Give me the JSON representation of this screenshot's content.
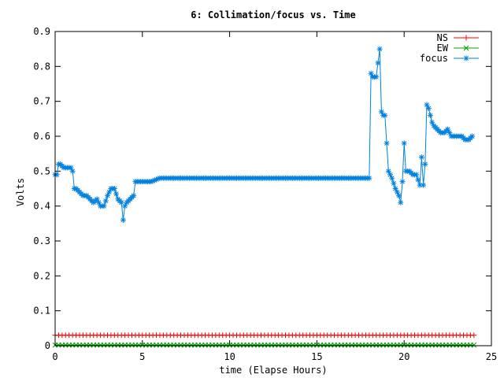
{
  "chart_data": {
    "type": "line",
    "title": "6: Collimation/focus vs. Time",
    "xlabel": "time (Elapse Hours)",
    "ylabel": "Volts",
    "xlim": [
      0,
      25
    ],
    "ylim": [
      0,
      0.9
    ],
    "xticks": [
      0,
      5,
      10,
      15,
      20,
      25
    ],
    "xtick_labels": [
      "0",
      "5",
      "10",
      "15",
      "20",
      "25"
    ],
    "yticks": [
      0,
      0.1,
      0.2,
      0.3,
      0.4,
      0.5,
      0.6,
      0.7,
      0.8,
      0.9
    ],
    "ytick_labels": [
      "0",
      "0.1",
      "0.2",
      "0.3",
      "0.4",
      "0.5",
      "0.6",
      "0.7",
      "0.8",
      "0.9"
    ],
    "grid": false,
    "legend_position": "top-right",
    "series": [
      {
        "name": "NS",
        "color": "#ff0000",
        "marker": "plus",
        "x_range": [
          0,
          24
        ],
        "x_step": 0.2,
        "constant_value": 0.03
      },
      {
        "name": "EW",
        "color": "#00a000",
        "marker": "cross",
        "x_range": [
          0,
          24
        ],
        "x_step": 0.2,
        "constant_value": 0.002
      },
      {
        "name": "focus",
        "color": "#0080e0",
        "marker": "star",
        "x": [
          0,
          0.1,
          0.2,
          0.3,
          0.5,
          0.7,
          0.9,
          1.0,
          1.1,
          1.2,
          1.4,
          1.6,
          1.8,
          2.0,
          2.2,
          2.4,
          2.6,
          2.8,
          3.0,
          3.2,
          3.4,
          3.6,
          3.8,
          3.9,
          4.0,
          4.1,
          4.3,
          4.5,
          4.6,
          4.7,
          5.0,
          5.5,
          6.0,
          6.5,
          7.0,
          8.0,
          9.0,
          10.0,
          11.0,
          12.0,
          13.0,
          14.0,
          15.0,
          16.0,
          17.0,
          18.0,
          18.1,
          18.2,
          18.4,
          18.6,
          18.7,
          18.8,
          18.9,
          19.1,
          19.3,
          19.5,
          19.7,
          19.8,
          19.9,
          20.0,
          20.1,
          20.2,
          20.3,
          20.5,
          20.7,
          20.9,
          21.0,
          21.1,
          21.2,
          21.3,
          21.4,
          21.6,
          21.7,
          21.9,
          22.1,
          22.3,
          22.5,
          22.7,
          22.9,
          23.1,
          23.3,
          23.5,
          23.7,
          23.9
        ],
        "y": [
          0.49,
          0.49,
          0.52,
          0.52,
          0.51,
          0.51,
          0.51,
          0.5,
          0.45,
          0.45,
          0.44,
          0.43,
          0.43,
          0.42,
          0.41,
          0.42,
          0.4,
          0.4,
          0.43,
          0.45,
          0.45,
          0.42,
          0.41,
          0.36,
          0.4,
          0.41,
          0.42,
          0.43,
          0.47,
          0.47,
          0.47,
          0.47,
          0.48,
          0.48,
          0.48,
          0.48,
          0.48,
          0.48,
          0.48,
          0.48,
          0.48,
          0.48,
          0.48,
          0.48,
          0.48,
          0.48,
          0.78,
          0.77,
          0.77,
          0.85,
          0.67,
          0.66,
          0.66,
          0.5,
          0.48,
          0.45,
          0.43,
          0.41,
          0.47,
          0.58,
          0.5,
          0.5,
          0.5,
          0.49,
          0.49,
          0.46,
          0.54,
          0.46,
          0.52,
          0.69,
          0.68,
          0.64,
          0.63,
          0.62,
          0.61,
          0.61,
          0.62,
          0.6,
          0.6,
          0.6,
          0.6,
          0.59,
          0.59,
          0.6
        ]
      }
    ]
  }
}
